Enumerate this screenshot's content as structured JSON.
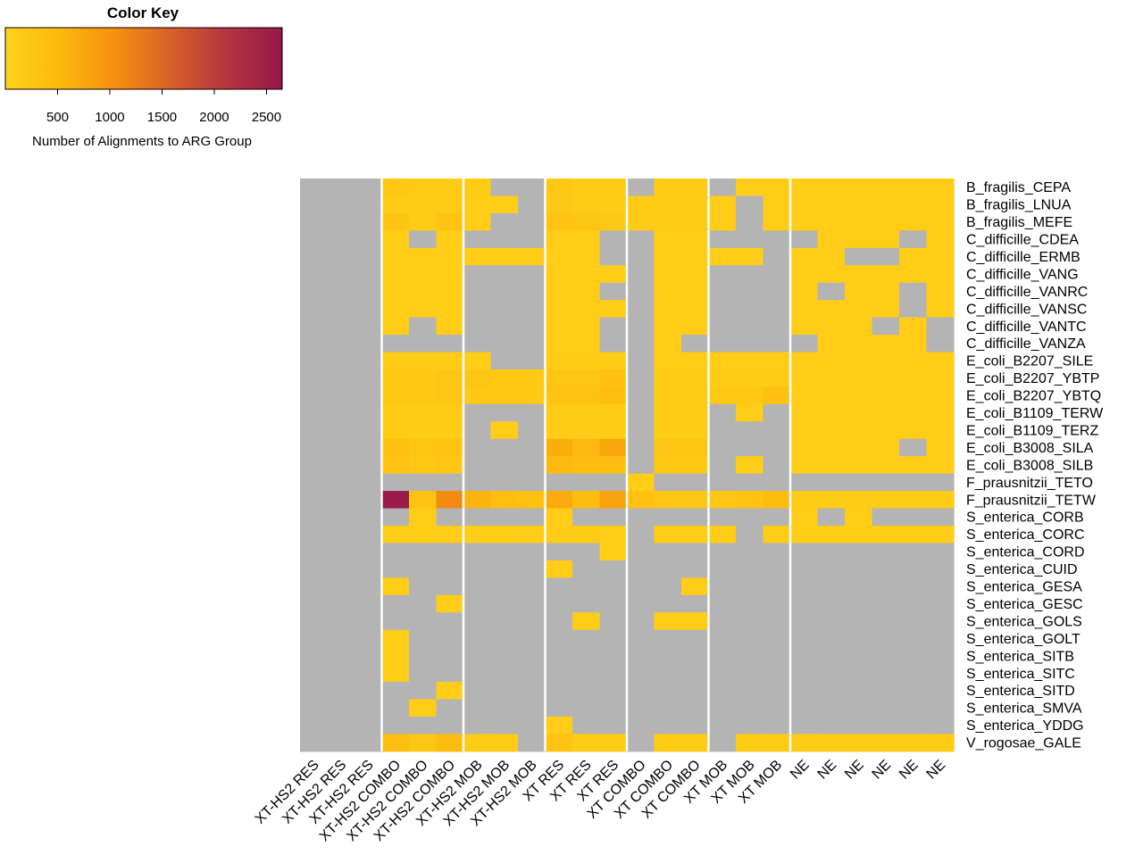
{
  "chart_data": {
    "type": "heatmap",
    "color_key": {
      "title": "Color Key",
      "label": "Number of Alignments to ARG Group",
      "ticks": [
        500,
        1000,
        1500,
        2000,
        2500
      ],
      "range": [
        0,
        2650
      ],
      "colors": [
        "#ffd21a",
        "#fdb80e",
        "#f58f10",
        "#d7602a",
        "#b43540",
        "#96184a"
      ]
    },
    "missing_color": "#b4b4b4",
    "columns": [
      "XT-HS2 RES",
      "XT-HS2 RES",
      "XT-HS2 RES",
      "XT-HS2 COMBO",
      "XT-HS2 COMBO",
      "XT-HS2 COMBO",
      "XT-HS2 MOB",
      "XT-HS2 MOB",
      "XT-HS2 MOB",
      "XT RES",
      "XT RES",
      "XT RES",
      "XT COMBO",
      "XT COMBO",
      "XT COMBO",
      "XT MOB",
      "XT MOB",
      "XT MOB",
      "NE",
      "NE",
      "NE",
      "NE",
      "NE",
      "NE"
    ],
    "rows": [
      "B_fragilis_CEPA",
      "B_fragilis_LNUA",
      "B_fragilis_MEFE",
      "C_difficille_CDEA",
      "C_difficille_ERMB",
      "C_difficille_VANG",
      "C_difficille_VANRC",
      "C_difficille_VANSC",
      "C_difficille_VANTC",
      "C_difficille_VANZA",
      "E_coli_B2207_SILE",
      "E_coli_B2207_YBTP",
      "E_coli_B2207_YBTQ",
      "E_coli_B1109_TERW",
      "E_coli_B1109_TERZ",
      "E_coli_B3008_SILA",
      "E_coli_B3008_SILB",
      "F_prausnitzii_TETO",
      "F_prausnitzii_TETW",
      "S_enterica_CORB",
      "S_enterica_CORC",
      "S_enterica_CORD",
      "S_enterica_CUID",
      "S_enterica_GESA",
      "S_enterica_GESC",
      "S_enterica_GOLS",
      "S_enterica_GOLT",
      "S_enterica_SITB",
      "S_enterica_SITC",
      "S_enterica_SITD",
      "S_enterica_SMVA",
      "S_enterica_YDDG",
      "V_rogosae_GALE"
    ],
    "group_separators_after_column": [
      3,
      6,
      9,
      12,
      15,
      18
    ],
    "values": [
      [
        null,
        null,
        null,
        200,
        150,
        150,
        150,
        null,
        null,
        200,
        150,
        150,
        null,
        150,
        150,
        null,
        100,
        100,
        100,
        100,
        100,
        100,
        100,
        100
      ],
      [
        null,
        null,
        null,
        150,
        150,
        150,
        100,
        120,
        null,
        180,
        150,
        150,
        150,
        150,
        150,
        100,
        null,
        100,
        100,
        100,
        100,
        100,
        100,
        100
      ],
      [
        null,
        null,
        null,
        300,
        150,
        300,
        100,
        null,
        null,
        300,
        250,
        180,
        150,
        150,
        150,
        100,
        null,
        100,
        100,
        100,
        100,
        100,
        100,
        100
      ],
      [
        null,
        null,
        null,
        120,
        null,
        100,
        null,
        null,
        null,
        120,
        120,
        null,
        null,
        100,
        100,
        null,
        null,
        null,
        null,
        100,
        100,
        100,
        null,
        100
      ],
      [
        null,
        null,
        null,
        120,
        120,
        100,
        100,
        100,
        100,
        120,
        120,
        null,
        null,
        100,
        100,
        100,
        100,
        null,
        100,
        100,
        null,
        null,
        100,
        100
      ],
      [
        null,
        null,
        null,
        120,
        120,
        120,
        null,
        null,
        null,
        120,
        120,
        120,
        null,
        100,
        100,
        null,
        null,
        null,
        100,
        100,
        100,
        100,
        100,
        100
      ],
      [
        null,
        null,
        null,
        120,
        120,
        100,
        null,
        null,
        null,
        120,
        120,
        null,
        null,
        100,
        100,
        null,
        null,
        null,
        100,
        null,
        100,
        100,
        null,
        100
      ],
      [
        null,
        null,
        null,
        120,
        120,
        100,
        null,
        null,
        null,
        120,
        120,
        120,
        null,
        100,
        100,
        null,
        null,
        null,
        100,
        100,
        100,
        100,
        null,
        100
      ],
      [
        null,
        null,
        null,
        120,
        null,
        120,
        null,
        null,
        null,
        120,
        120,
        null,
        null,
        100,
        100,
        null,
        null,
        null,
        100,
        100,
        100,
        null,
        100,
        null
      ],
      [
        null,
        null,
        null,
        null,
        null,
        null,
        null,
        null,
        null,
        120,
        120,
        null,
        null,
        100,
        null,
        null,
        null,
        null,
        null,
        100,
        100,
        100,
        100,
        null
      ],
      [
        null,
        null,
        null,
        150,
        150,
        150,
        100,
        null,
        null,
        150,
        150,
        150,
        null,
        100,
        100,
        100,
        100,
        100,
        100,
        100,
        100,
        100,
        100,
        100
      ],
      [
        null,
        null,
        null,
        200,
        200,
        250,
        250,
        200,
        200,
        250,
        250,
        350,
        null,
        150,
        150,
        150,
        150,
        150,
        100,
        100,
        100,
        100,
        100,
        100
      ],
      [
        null,
        null,
        null,
        200,
        200,
        250,
        200,
        200,
        200,
        300,
        300,
        400,
        null,
        150,
        150,
        200,
        200,
        350,
        100,
        100,
        100,
        100,
        100,
        100
      ],
      [
        null,
        null,
        null,
        150,
        150,
        150,
        null,
        null,
        null,
        150,
        150,
        150,
        null,
        150,
        150,
        null,
        100,
        null,
        100,
        100,
        100,
        100,
        100,
        100
      ],
      [
        null,
        null,
        null,
        150,
        150,
        150,
        null,
        100,
        null,
        150,
        150,
        150,
        null,
        150,
        150,
        null,
        null,
        null,
        100,
        100,
        100,
        100,
        100,
        100
      ],
      [
        null,
        null,
        null,
        350,
        250,
        300,
        null,
        null,
        null,
        650,
        500,
        750,
        null,
        250,
        250,
        null,
        null,
        null,
        100,
        100,
        100,
        100,
        null,
        100
      ],
      [
        null,
        null,
        null,
        300,
        200,
        250,
        null,
        null,
        null,
        500,
        400,
        400,
        null,
        200,
        200,
        null,
        100,
        null,
        100,
        100,
        100,
        100,
        100,
        100
      ],
      [
        null,
        null,
        null,
        null,
        null,
        null,
        null,
        null,
        null,
        null,
        null,
        null,
        100,
        null,
        null,
        null,
        null,
        null,
        null,
        null,
        null,
        null,
        null,
        null
      ],
      [
        null,
        null,
        null,
        2600,
        300,
        1100,
        600,
        400,
        350,
        700,
        450,
        800,
        350,
        250,
        250,
        250,
        300,
        450,
        150,
        150,
        150,
        150,
        150,
        150
      ],
      [
        null,
        null,
        null,
        null,
        120,
        null,
        null,
        null,
        null,
        120,
        null,
        null,
        null,
        null,
        null,
        null,
        null,
        null,
        100,
        null,
        100,
        null,
        null,
        null
      ],
      [
        null,
        null,
        null,
        120,
        120,
        120,
        100,
        100,
        100,
        150,
        150,
        120,
        null,
        100,
        100,
        100,
        null,
        100,
        100,
        100,
        100,
        100,
        100,
        100
      ],
      [
        null,
        null,
        null,
        null,
        null,
        null,
        null,
        null,
        null,
        null,
        null,
        120,
        null,
        null,
        null,
        null,
        null,
        null,
        null,
        null,
        null,
        null,
        null,
        null
      ],
      [
        null,
        null,
        null,
        null,
        null,
        null,
        null,
        null,
        null,
        120,
        null,
        null,
        null,
        null,
        null,
        null,
        null,
        null,
        null,
        null,
        null,
        null,
        null,
        null
      ],
      [
        null,
        null,
        null,
        120,
        null,
        null,
        null,
        null,
        null,
        null,
        null,
        null,
        null,
        null,
        120,
        null,
        null,
        null,
        null,
        null,
        null,
        null,
        null,
        null
      ],
      [
        null,
        null,
        null,
        null,
        null,
        120,
        null,
        null,
        null,
        null,
        null,
        null,
        null,
        null,
        null,
        null,
        null,
        null,
        null,
        null,
        null,
        null,
        null,
        null
      ],
      [
        null,
        null,
        null,
        null,
        null,
        null,
        null,
        null,
        null,
        null,
        120,
        null,
        null,
        120,
        120,
        null,
        null,
        null,
        null,
        null,
        null,
        null,
        null,
        null
      ],
      [
        null,
        null,
        null,
        120,
        null,
        null,
        null,
        null,
        null,
        null,
        null,
        null,
        null,
        null,
        null,
        null,
        null,
        null,
        null,
        null,
        null,
        null,
        null,
        null
      ],
      [
        null,
        null,
        null,
        120,
        null,
        null,
        null,
        null,
        null,
        null,
        null,
        null,
        null,
        null,
        null,
        null,
        null,
        null,
        null,
        null,
        null,
        null,
        null,
        null
      ],
      [
        null,
        null,
        null,
        120,
        null,
        null,
        null,
        null,
        null,
        null,
        null,
        null,
        null,
        null,
        null,
        null,
        null,
        null,
        null,
        null,
        null,
        null,
        null,
        null
      ],
      [
        null,
        null,
        null,
        null,
        null,
        120,
        null,
        null,
        null,
        null,
        null,
        null,
        null,
        null,
        null,
        null,
        null,
        null,
        null,
        null,
        null,
        null,
        null,
        null
      ],
      [
        null,
        null,
        null,
        null,
        120,
        null,
        null,
        null,
        null,
        null,
        null,
        null,
        null,
        null,
        null,
        null,
        null,
        null,
        null,
        null,
        null,
        null,
        null,
        null
      ],
      [
        null,
        null,
        null,
        null,
        null,
        null,
        null,
        null,
        null,
        120,
        null,
        null,
        null,
        null,
        null,
        null,
        null,
        null,
        null,
        null,
        null,
        null,
        null,
        null
      ],
      [
        null,
        null,
        null,
        400,
        250,
        450,
        150,
        150,
        null,
        300,
        150,
        150,
        null,
        150,
        150,
        null,
        150,
        150,
        150,
        150,
        150,
        150,
        150,
        150
      ]
    ]
  }
}
